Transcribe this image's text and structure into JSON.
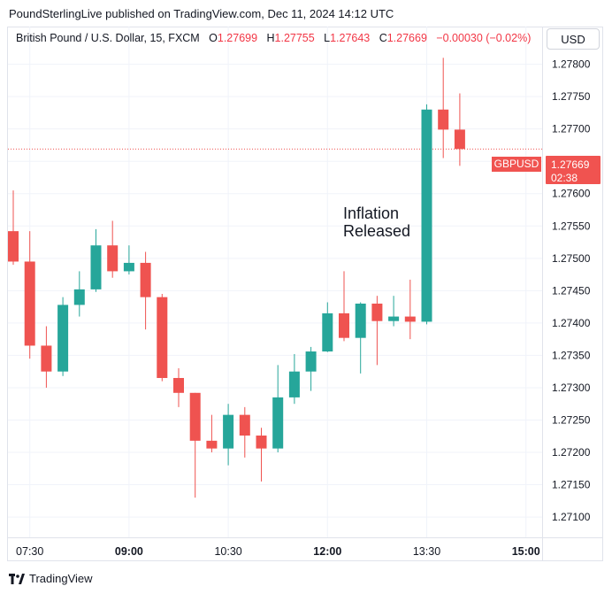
{
  "attribution": "PoundSterlingLive published on TradingView.com, Dec 11, 2024 14:12 UTC",
  "legend": {
    "title": "British Pound / U.S. Dollar, 15, FXCM",
    "o_label": "O",
    "o_value": "1.27699",
    "h_label": "H",
    "h_value": "1.27755",
    "l_label": "L",
    "l_value": "1.27643",
    "c_label": "C",
    "c_value": "1.27669",
    "change": "−0.00030 (−0.02%)"
  },
  "currency_button": "USD",
  "annotation": {
    "line1": "Inflation",
    "line2": "Released"
  },
  "price_tag": {
    "symbol": "GBPUSD",
    "price": "1.27669",
    "countdown": "02:38"
  },
  "footer": {
    "brand": "TradingView",
    "logo_icon": "tradingview-logo-icon"
  },
  "colors": {
    "up": "#26a69a",
    "down": "#ef5350",
    "grid": "#f0f3fa",
    "last_price_line": "#ef5350"
  },
  "chart_data": {
    "type": "candlestick",
    "symbol": "GBPUSD",
    "interval_minutes": 15,
    "ylim": [
      1.2707,
      1.2782
    ],
    "y_ticks": [
      "1.27100",
      "1.27150",
      "1.27200",
      "1.27250",
      "1.27300",
      "1.27350",
      "1.27400",
      "1.27450",
      "1.27500",
      "1.27550",
      "1.27600",
      "1.27650",
      "1.27700",
      "1.27750",
      "1.27800"
    ],
    "x_ticks": [
      {
        "index": 1,
        "label": "07:30",
        "bold": false
      },
      {
        "index": 7,
        "label": "09:00",
        "bold": true
      },
      {
        "index": 13,
        "label": "10:30",
        "bold": false
      },
      {
        "index": 19,
        "label": "12:00",
        "bold": true
      },
      {
        "index": 25,
        "label": "13:30",
        "bold": false
      },
      {
        "index": 31,
        "label": "15:00",
        "bold": true
      }
    ],
    "last_price": 1.27669,
    "candles": [
      {
        "o": 1.27542,
        "h": 1.27605,
        "l": 1.2749,
        "c": 1.27495
      },
      {
        "o": 1.27495,
        "h": 1.27542,
        "l": 1.27345,
        "c": 1.27365
      },
      {
        "o": 1.27365,
        "h": 1.27395,
        "l": 1.273,
        "c": 1.27325
      },
      {
        "o": 1.27325,
        "h": 1.2744,
        "l": 1.27318,
        "c": 1.27428
      },
      {
        "o": 1.27428,
        "h": 1.2748,
        "l": 1.2741,
        "c": 1.27452
      },
      {
        "o": 1.27452,
        "h": 1.27545,
        "l": 1.27448,
        "c": 1.2752
      },
      {
        "o": 1.2752,
        "h": 1.27558,
        "l": 1.2747,
        "c": 1.2748
      },
      {
        "o": 1.2748,
        "h": 1.2752,
        "l": 1.27475,
        "c": 1.27493
      },
      {
        "o": 1.27493,
        "h": 1.2751,
        "l": 1.2739,
        "c": 1.2744
      },
      {
        "o": 1.2744,
        "h": 1.27445,
        "l": 1.2731,
        "c": 1.27315
      },
      {
        "o": 1.27315,
        "h": 1.2733,
        "l": 1.2727,
        "c": 1.27292
      },
      {
        "o": 1.27292,
        "h": 1.27292,
        "l": 1.2713,
        "c": 1.27218
      },
      {
        "o": 1.27218,
        "h": 1.27258,
        "l": 1.272,
        "c": 1.27206
      },
      {
        "o": 1.27206,
        "h": 1.27275,
        "l": 1.2718,
        "c": 1.27258
      },
      {
        "o": 1.27258,
        "h": 1.2727,
        "l": 1.27192,
        "c": 1.27226
      },
      {
        "o": 1.27226,
        "h": 1.27238,
        "l": 1.27155,
        "c": 1.27206
      },
      {
        "o": 1.27206,
        "h": 1.27335,
        "l": 1.272,
        "c": 1.27285
      },
      {
        "o": 1.27285,
        "h": 1.27352,
        "l": 1.27275,
        "c": 1.27325
      },
      {
        "o": 1.27325,
        "h": 1.27363,
        "l": 1.27295,
        "c": 1.27356
      },
      {
        "o": 1.27356,
        "h": 1.27432,
        "l": 1.27355,
        "c": 1.27415
      },
      {
        "o": 1.27415,
        "h": 1.2748,
        "l": 1.27372,
        "c": 1.27377
      },
      {
        "o": 1.27377,
        "h": 1.27432,
        "l": 1.27322,
        "c": 1.2743
      },
      {
        "o": 1.2743,
        "h": 1.27442,
        "l": 1.27335,
        "c": 1.27403
      },
      {
        "o": 1.27403,
        "h": 1.27442,
        "l": 1.27395,
        "c": 1.2741
      },
      {
        "o": 1.2741,
        "h": 1.27467,
        "l": 1.27375,
        "c": 1.27402
      },
      {
        "o": 1.27402,
        "h": 1.27738,
        "l": 1.27398,
        "c": 1.2773
      },
      {
        "o": 1.2773,
        "h": 1.2781,
        "l": 1.27655,
        "c": 1.27699
      },
      {
        "o": 1.27699,
        "h": 1.27755,
        "l": 1.27643,
        "c": 1.27669
      }
    ]
  }
}
